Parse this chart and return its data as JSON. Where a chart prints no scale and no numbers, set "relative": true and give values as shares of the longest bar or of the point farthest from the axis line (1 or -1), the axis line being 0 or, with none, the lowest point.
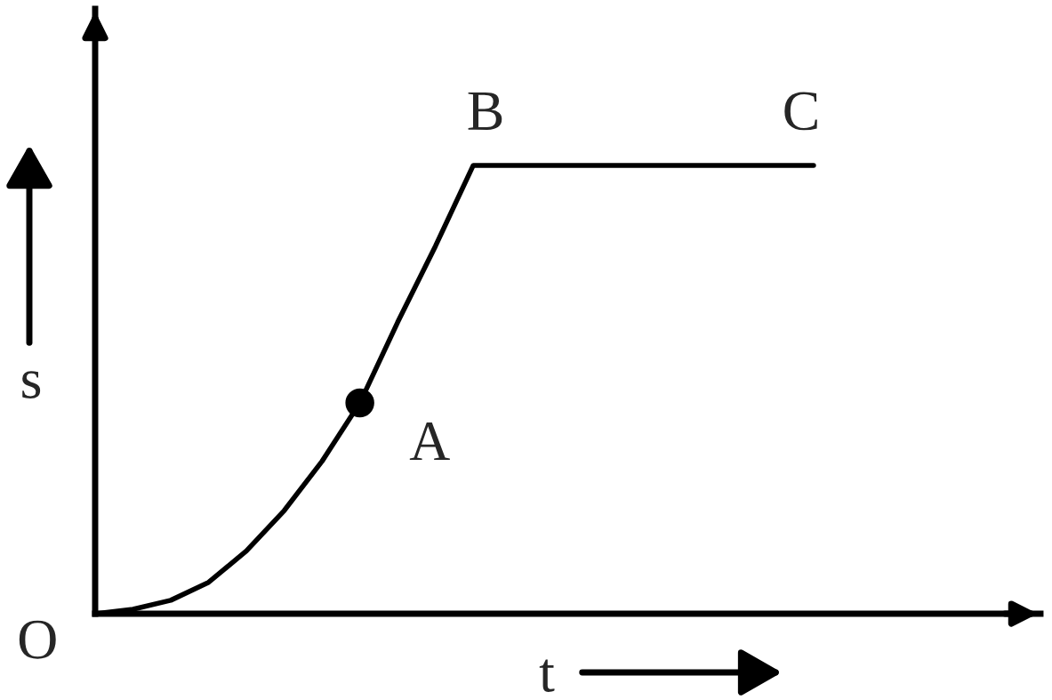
{
  "chart_data": {
    "type": "line",
    "relative": true,
    "xlabel": "t",
    "ylabel": "s",
    "categories": [
      null,
      null,
      null,
      null,
      null,
      null,
      null,
      null,
      null,
      null,
      null,
      null,
      null,
      null,
      null,
      null,
      null,
      null,
      null,
      null
    ],
    "series": [
      {
        "color": "#000000",
        "values": [
          0,
          0.01,
          0.03,
          0.07,
          0.14,
          0.23,
          0.34,
          0.47,
          0.65,
          0.82,
          1,
          1,
          1,
          1,
          1,
          1,
          1,
          1,
          1,
          1
        ]
      }
    ],
    "annotations": [
      "O",
      "A",
      "B",
      "C"
    ]
  }
}
